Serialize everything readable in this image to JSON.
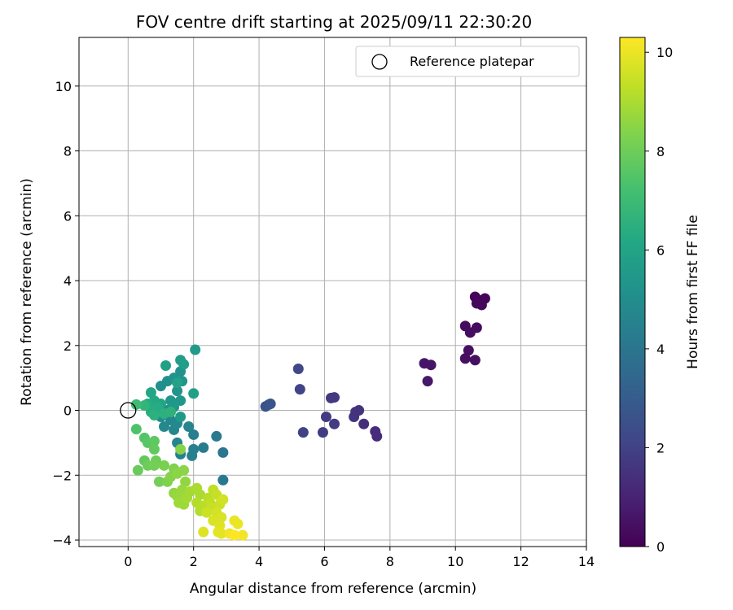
{
  "chart_data": {
    "type": "scatter",
    "title": "FOV centre drift starting at 2025/09/11 22:30:20",
    "xlabel": "Angular distance from reference (arcmin)",
    "ylabel": "Rotation from reference (arcmin)",
    "xlim": [
      -1.5,
      14.0
    ],
    "ylim": [
      -4.2,
      11.5
    ],
    "xticks": [
      0,
      2,
      4,
      6,
      8,
      10,
      12,
      14
    ],
    "yticks": [
      -4,
      -2,
      0,
      2,
      4,
      6,
      8,
      10
    ],
    "grid": true,
    "legend": {
      "position": "upper right",
      "entries": [
        "Reference platepar"
      ]
    },
    "reference_point": {
      "x": 0,
      "y": 0,
      "label": "Reference platepar"
    },
    "colorbar": {
      "label": "Hours from first FF file",
      "min": 0,
      "max": 10.3,
      "ticks": [
        0,
        2,
        4,
        6,
        8,
        10
      ],
      "colormap": "viridis"
    },
    "points": [
      {
        "x": 10.6,
        "y": 3.5,
        "h": 0.1
      },
      {
        "x": 10.7,
        "y": 3.4,
        "h": 0.1
      },
      {
        "x": 10.9,
        "y": 3.45,
        "h": 0.15
      },
      {
        "x": 10.65,
        "y": 3.3,
        "h": 0.2
      },
      {
        "x": 10.8,
        "y": 3.25,
        "h": 0.2
      },
      {
        "x": 10.3,
        "y": 2.6,
        "h": 0.3
      },
      {
        "x": 10.65,
        "y": 2.55,
        "h": 0.3
      },
      {
        "x": 10.45,
        "y": 2.4,
        "h": 0.35
      },
      {
        "x": 10.4,
        "y": 1.85,
        "h": 0.4
      },
      {
        "x": 10.3,
        "y": 1.6,
        "h": 0.4
      },
      {
        "x": 10.6,
        "y": 1.55,
        "h": 0.45
      },
      {
        "x": 9.05,
        "y": 1.45,
        "h": 0.6
      },
      {
        "x": 9.25,
        "y": 1.4,
        "h": 0.6
      },
      {
        "x": 9.15,
        "y": 0.9,
        "h": 0.65
      },
      {
        "x": 7.55,
        "y": -0.65,
        "h": 1.3
      },
      {
        "x": 7.6,
        "y": -0.8,
        "h": 1.3
      },
      {
        "x": 7.2,
        "y": -0.42,
        "h": 1.4
      },
      {
        "x": 7.05,
        "y": 0.0,
        "h": 1.5
      },
      {
        "x": 6.95,
        "y": -0.05,
        "h": 1.5
      },
      {
        "x": 6.9,
        "y": -0.2,
        "h": 1.55
      },
      {
        "x": 6.2,
        "y": 0.38,
        "h": 1.7
      },
      {
        "x": 6.3,
        "y": 0.4,
        "h": 1.7
      },
      {
        "x": 6.3,
        "y": -0.42,
        "h": 1.75
      },
      {
        "x": 6.05,
        "y": -0.2,
        "h": 1.8
      },
      {
        "x": 5.95,
        "y": -0.68,
        "h": 1.85
      },
      {
        "x": 5.35,
        "y": -0.68,
        "h": 2.0
      },
      {
        "x": 5.25,
        "y": 0.65,
        "h": 2.1
      },
      {
        "x": 5.2,
        "y": 1.28,
        "h": 2.2
      },
      {
        "x": 4.2,
        "y": 0.12,
        "h": 2.6
      },
      {
        "x": 4.3,
        "y": 0.18,
        "h": 2.6
      },
      {
        "x": 4.35,
        "y": 0.2,
        "h": 2.7
      },
      {
        "x": 2.9,
        "y": -1.3,
        "h": 4.0
      },
      {
        "x": 2.9,
        "y": -2.15,
        "h": 4.1
      },
      {
        "x": 2.7,
        "y": -0.8,
        "h": 4.2
      },
      {
        "x": 2.3,
        "y": -1.15,
        "h": 4.3
      },
      {
        "x": 2.0,
        "y": -0.75,
        "h": 4.4
      },
      {
        "x": 2.0,
        "y": -1.2,
        "h": 4.4
      },
      {
        "x": 1.95,
        "y": -1.4,
        "h": 4.5
      },
      {
        "x": 1.6,
        "y": -1.35,
        "h": 4.5
      },
      {
        "x": 1.5,
        "y": -1.0,
        "h": 4.6
      },
      {
        "x": 1.85,
        "y": -0.5,
        "h": 4.6
      },
      {
        "x": 1.4,
        "y": -0.6,
        "h": 4.7
      },
      {
        "x": 1.3,
        "y": -0.3,
        "h": 4.7
      },
      {
        "x": 1.5,
        "y": -0.4,
        "h": 4.8
      },
      {
        "x": 1.1,
        "y": -0.5,
        "h": 4.8
      },
      {
        "x": 1.0,
        "y": -0.2,
        "h": 4.9
      },
      {
        "x": 1.2,
        "y": 0.0,
        "h": 5.0
      },
      {
        "x": 0.9,
        "y": -0.1,
        "h": 5.0
      },
      {
        "x": 1.0,
        "y": 0.75,
        "h": 5.1
      },
      {
        "x": 1.2,
        "y": 0.9,
        "h": 5.1
      },
      {
        "x": 1.4,
        "y": 1.0,
        "h": 5.2
      },
      {
        "x": 1.6,
        "y": 1.2,
        "h": 5.2
      },
      {
        "x": 1.65,
        "y": 0.9,
        "h": 5.3
      },
      {
        "x": 1.5,
        "y": 0.6,
        "h": 5.3
      },
      {
        "x": 1.3,
        "y": 0.3,
        "h": 5.4
      },
      {
        "x": 1.6,
        "y": 0.3,
        "h": 5.4
      },
      {
        "x": 1.4,
        "y": 0.1,
        "h": 5.5
      },
      {
        "x": 1.6,
        "y": -0.2,
        "h": 5.5
      },
      {
        "x": 2.05,
        "y": 1.87,
        "h": 5.6
      },
      {
        "x": 1.6,
        "y": 1.55,
        "h": 5.7
      },
      {
        "x": 1.7,
        "y": 1.42,
        "h": 5.7
      },
      {
        "x": 1.15,
        "y": 1.38,
        "h": 5.8
      },
      {
        "x": 2.0,
        "y": 0.52,
        "h": 5.8
      },
      {
        "x": 1.5,
        "y": 0.85,
        "h": 5.9
      },
      {
        "x": 1.0,
        "y": 0.2,
        "h": 6.0
      },
      {
        "x": 0.7,
        "y": 0.55,
        "h": 6.1
      },
      {
        "x": 0.8,
        "y": 0.3,
        "h": 6.2
      },
      {
        "x": 0.6,
        "y": 0.2,
        "h": 6.3
      },
      {
        "x": 0.9,
        "y": 0.1,
        "h": 6.3
      },
      {
        "x": 0.7,
        "y": -0.05,
        "h": 6.4
      },
      {
        "x": 1.1,
        "y": -0.1,
        "h": 6.5
      },
      {
        "x": 0.8,
        "y": -0.15,
        "h": 6.5
      },
      {
        "x": 1.3,
        "y": -0.05,
        "h": 6.6
      },
      {
        "x": 0.5,
        "y": 0.15,
        "h": 6.7
      },
      {
        "x": 0.25,
        "y": 0.18,
        "h": 7.0
      },
      {
        "x": 0.25,
        "y": -0.58,
        "h": 7.4
      },
      {
        "x": 0.5,
        "y": -0.85,
        "h": 7.5
      },
      {
        "x": 0.6,
        "y": -1.0,
        "h": 7.6
      },
      {
        "x": 0.8,
        "y": -0.95,
        "h": 7.7
      },
      {
        "x": 0.8,
        "y": -1.2,
        "h": 7.8
      },
      {
        "x": 0.5,
        "y": -1.55,
        "h": 7.8
      },
      {
        "x": 0.3,
        "y": -1.85,
        "h": 7.9
      },
      {
        "x": 0.6,
        "y": -1.7,
        "h": 8.0
      },
      {
        "x": 0.85,
        "y": -1.55,
        "h": 8.0
      },
      {
        "x": 0.8,
        "y": -1.7,
        "h": 8.1
      },
      {
        "x": 0.95,
        "y": -2.2,
        "h": 8.1
      },
      {
        "x": 1.1,
        "y": -1.7,
        "h": 8.2
      },
      {
        "x": 1.2,
        "y": -2.2,
        "h": 8.3
      },
      {
        "x": 1.4,
        "y": -1.8,
        "h": 8.3
      },
      {
        "x": 1.3,
        "y": -2.05,
        "h": 8.4
      },
      {
        "x": 1.6,
        "y": -1.2,
        "h": 8.4
      },
      {
        "x": 1.5,
        "y": -1.95,
        "h": 8.5
      },
      {
        "x": 1.7,
        "y": -1.85,
        "h": 8.5
      },
      {
        "x": 1.75,
        "y": -2.2,
        "h": 8.6
      },
      {
        "x": 1.4,
        "y": -2.55,
        "h": 8.6
      },
      {
        "x": 1.5,
        "y": -2.65,
        "h": 8.7
      },
      {
        "x": 1.65,
        "y": -2.45,
        "h": 8.7
      },
      {
        "x": 1.55,
        "y": -2.85,
        "h": 8.8
      },
      {
        "x": 1.7,
        "y": -2.9,
        "h": 8.8
      },
      {
        "x": 1.8,
        "y": -2.7,
        "h": 8.9
      },
      {
        "x": 1.9,
        "y": -2.5,
        "h": 8.9
      },
      {
        "x": 2.1,
        "y": -2.4,
        "h": 9.0
      },
      {
        "x": 2.2,
        "y": -2.6,
        "h": 9.0
      },
      {
        "x": 2.1,
        "y": -2.85,
        "h": 9.1
      },
      {
        "x": 2.2,
        "y": -3.1,
        "h": 9.1
      },
      {
        "x": 2.3,
        "y": -2.95,
        "h": 9.2
      },
      {
        "x": 2.45,
        "y": -2.7,
        "h": 9.2
      },
      {
        "x": 2.5,
        "y": -2.85,
        "h": 9.3
      },
      {
        "x": 2.6,
        "y": -2.45,
        "h": 9.3
      },
      {
        "x": 2.7,
        "y": -2.6,
        "h": 9.4
      },
      {
        "x": 2.55,
        "y": -3.0,
        "h": 9.4
      },
      {
        "x": 2.4,
        "y": -3.15,
        "h": 9.5
      },
      {
        "x": 2.8,
        "y": -2.9,
        "h": 9.5
      },
      {
        "x": 2.9,
        "y": -2.75,
        "h": 9.6
      },
      {
        "x": 2.7,
        "y": -3.15,
        "h": 9.6
      },
      {
        "x": 2.85,
        "y": -3.3,
        "h": 9.7
      },
      {
        "x": 2.6,
        "y": -3.4,
        "h": 9.7
      },
      {
        "x": 2.3,
        "y": -3.75,
        "h": 9.8
      },
      {
        "x": 2.8,
        "y": -3.55,
        "h": 9.8
      },
      {
        "x": 2.75,
        "y": -3.75,
        "h": 9.9
      },
      {
        "x": 2.85,
        "y": -3.8,
        "h": 9.9
      },
      {
        "x": 3.25,
        "y": -3.4,
        "h": 10.0
      },
      {
        "x": 3.35,
        "y": -3.5,
        "h": 10.0
      },
      {
        "x": 3.1,
        "y": -3.8,
        "h": 10.1
      },
      {
        "x": 3.5,
        "y": -3.85,
        "h": 10.1
      },
      {
        "x": 3.25,
        "y": -3.85,
        "h": 10.3
      }
    ]
  }
}
